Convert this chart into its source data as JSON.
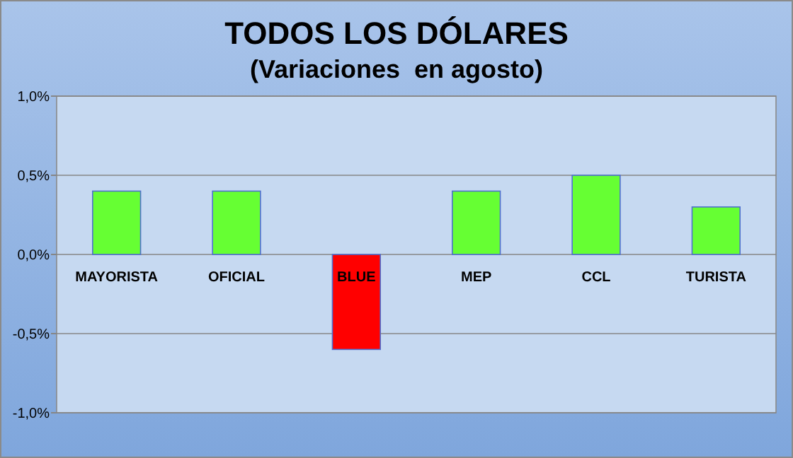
{
  "chart_data": {
    "type": "bar",
    "title": "TODOS LOS DÓLARES",
    "subtitle": "(Variaciones  en agosto)",
    "categories": [
      "MAYORISTA",
      "OFICIAL",
      "BLUE",
      "MEP",
      "CCL",
      "TURISTA"
    ],
    "values": [
      0.4,
      0.4,
      -0.6,
      0.4,
      0.5,
      0.3
    ],
    "colors": [
      "#66ff33",
      "#66ff33",
      "#ff0000",
      "#66ff33",
      "#66ff33",
      "#66ff33"
    ],
    "ylim": [
      -1,
      1
    ],
    "yticks": [
      {
        "value": -1,
        "label": "-1,0%"
      },
      {
        "value": -0.5,
        "label": "-0,5%"
      },
      {
        "value": 0,
        "label": "0,0%"
      },
      {
        "value": 0.5,
        "label": "0,5%"
      },
      {
        "value": 1,
        "label": "1,0%"
      }
    ],
    "grid": true
  }
}
